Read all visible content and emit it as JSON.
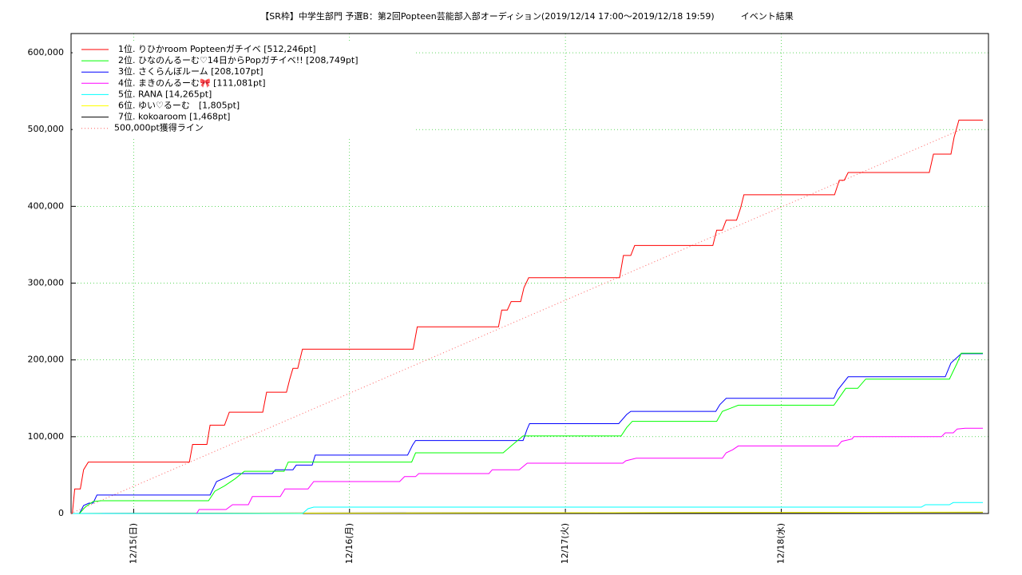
{
  "chart_data": {
    "type": "line",
    "title": "【SR枠】中学生部門 予選B：第2回Popteen芸能部入部オーディション(2019/12/14 17:00～2019/12/18 19:59)　　　イベント結果",
    "xlim": [
      14.71,
      18.96
    ],
    "xticks": [
      {
        "value": 15,
        "label": "12/15(日)"
      },
      {
        "value": 16,
        "label": "12/16(月)"
      },
      {
        "value": 17,
        "label": "12/17(火)"
      },
      {
        "value": 18,
        "label": "12/18(水)"
      }
    ],
    "ylim": [
      0,
      625000
    ],
    "yticks": [
      0,
      {
        "value": 100000,
        "label": "100,000"
      },
      {
        "value": 200000,
        "label": "200,000"
      },
      {
        "value": 300000,
        "label": "300,000"
      },
      {
        "value": 400000,
        "label": "400,000"
      },
      {
        "value": 500000,
        "label": "500,000"
      },
      {
        "value": 600000,
        "label": "600,000"
      }
    ],
    "grid": true,
    "legend": "top-left",
    "series": [
      {
        "name": "1位. りひかroom Popteenガチイベ [512,246pt]",
        "color": "#ff0000",
        "style": "solid",
        "x": [
          14.716,
          14.727,
          14.753,
          14.768,
          14.79,
          15.258,
          15.273,
          15.339,
          15.354,
          15.421,
          15.443,
          15.598,
          15.616,
          15.708,
          15.723,
          15.738,
          15.76,
          15.782,
          16.295,
          16.314,
          16.69,
          16.705,
          16.731,
          16.749,
          16.793,
          16.808,
          16.83,
          17.251,
          17.269,
          17.303,
          17.321,
          17.683,
          17.701,
          17.727,
          17.745,
          17.793,
          17.812,
          17.827,
          18.247,
          18.269,
          18.292,
          18.31,
          18.686,
          18.705,
          18.786,
          18.801,
          18.823,
          18.934
        ],
        "values": [
          0,
          32000,
          32000,
          57000,
          67000,
          67000,
          90000,
          90000,
          115000,
          115000,
          132000,
          132000,
          158000,
          158000,
          175000,
          189000,
          189000,
          214000,
          214000,
          243000,
          243000,
          265000,
          265000,
          276000,
          276000,
          294000,
          307000,
          307000,
          336000,
          336000,
          349000,
          349000,
          369000,
          369000,
          382000,
          382000,
          398000,
          415000,
          415000,
          434000,
          434000,
          444000,
          444000,
          468000,
          468000,
          490000,
          512246,
          512246
        ]
      },
      {
        "name": "2位. ひなのんるーむ♡14日からPopガチイベ!! [208,749pt]",
        "color": "#00ff00",
        "style": "solid",
        "x": [
          14.749,
          14.775,
          14.812,
          14.849,
          15.347,
          15.376,
          15.421,
          15.469,
          15.513,
          15.697,
          15.716,
          16.288,
          16.306,
          16.712,
          16.749,
          16.804,
          17.258,
          17.284,
          17.31,
          17.701,
          17.727,
          17.764,
          17.801,
          18.244,
          18.299,
          18.354,
          18.391,
          18.779,
          18.815,
          18.834,
          18.934
        ],
        "values": [
          0,
          8300,
          15600,
          16600,
          16600,
          29000,
          36000,
          45000,
          55000,
          55000,
          67000,
          67000,
          79000,
          79000,
          88000,
          101000,
          101000,
          112000,
          120000,
          120000,
          133000,
          137000,
          141000,
          141000,
          163000,
          163000,
          175000,
          175000,
          196000,
          208749,
          208749
        ]
      },
      {
        "name": "3位. さくらんぼルーム [208,107pt]",
        "color": "#0000ff",
        "style": "solid",
        "x": [
          14.749,
          14.768,
          14.793,
          14.812,
          14.83,
          15.354,
          15.384,
          15.428,
          15.465,
          15.642,
          15.657,
          15.738,
          15.753,
          15.827,
          15.841,
          16.269,
          16.292,
          16.306,
          16.804,
          16.823,
          16.834,
          17.247,
          17.284,
          17.303,
          17.697,
          17.716,
          17.745,
          18.244,
          18.262,
          18.31,
          18.76,
          18.786,
          18.834,
          18.934
        ],
        "values": [
          0,
          10400,
          13500,
          13500,
          24000,
          24000,
          41600,
          47000,
          52000,
          52000,
          57000,
          57000,
          63000,
          63000,
          76000,
          76000,
          89000,
          95000,
          95000,
          110000,
          117000,
          117000,
          129000,
          133000,
          133000,
          142000,
          150000,
          150000,
          161000,
          178000,
          178000,
          196000,
          208107,
          208107
        ]
      },
      {
        "name": "4位. まきのんるーむ🎀 [111,081pt]",
        "color": "#ff00ff",
        "style": "solid",
        "x": [
          15.292,
          15.303,
          15.428,
          15.458,
          15.531,
          15.55,
          15.679,
          15.701,
          15.808,
          15.834,
          16.232,
          16.255,
          16.306,
          16.321,
          16.646,
          16.661,
          16.786,
          16.823,
          17.266,
          17.28,
          17.328,
          17.727,
          17.745,
          17.775,
          17.801,
          18.262,
          18.28,
          18.328,
          18.336,
          18.742,
          18.76,
          18.797,
          18.815,
          18.852,
          18.934
        ],
        "values": [
          0,
          5200,
          5200,
          11400,
          11400,
          22000,
          22000,
          32000,
          32000,
          41600,
          41600,
          48000,
          48000,
          52000,
          52000,
          57000,
          57000,
          65500,
          65500,
          68600,
          72000,
          72000,
          79000,
          83000,
          88000,
          88000,
          94000,
          97000,
          100000,
          100000,
          105000,
          105000,
          110000,
          111081,
          111081
        ]
      },
      {
        "name": "5位. RANA [14,265pt]",
        "color": "#00ffff",
        "style": "solid",
        "x": [
          14.716,
          15.782,
          15.808,
          15.834,
          18.649,
          18.668,
          18.779,
          18.797,
          18.934
        ],
        "values": [
          0,
          0,
          6200,
          8300,
          8300,
          11400,
          11400,
          14265,
          14265
        ]
      },
      {
        "name": "6位. ゆい♡るーむ　[1,805pt]",
        "color": "#ffff00",
        "style": "solid",
        "x": [
          14.716,
          15.8,
          18.934
        ],
        "values": [
          0,
          500,
          1805
        ]
      },
      {
        "name": "7位. kokoaroom [1,468pt]",
        "color": "#000000",
        "style": "solid",
        "x": [
          14.716,
          15.8,
          18.934
        ],
        "values": [
          0,
          600,
          1468
        ]
      },
      {
        "name": "500,000pt獲得ライン",
        "color": "#ff6060",
        "style": "dotted",
        "x": [
          14.708,
          18.833
        ],
        "values": [
          0,
          500000
        ]
      }
    ]
  }
}
